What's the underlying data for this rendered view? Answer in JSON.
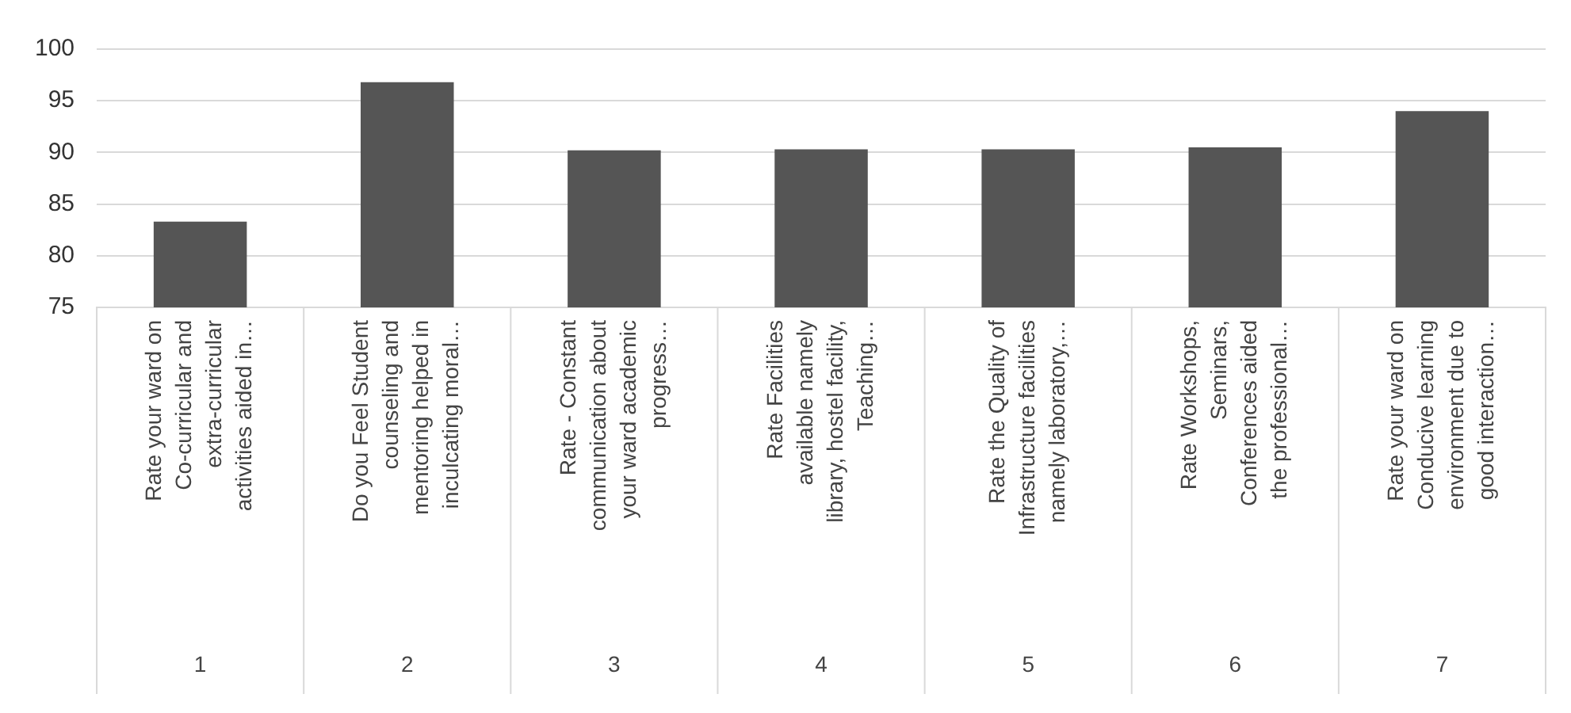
{
  "chart_data": {
    "type": "bar",
    "categories": [
      "Rate your ward on Co-curricular and extra-curricular activities aided in…",
      "Do you Feel Student counseling and mentoring helped in inculcating moral…",
      "Rate - Constant communication about your ward academic progress…",
      "Rate Facilities available namely library, hostel facility, Teaching…",
      "Rate the Quality of Infrastructure facilities namely laboratory,…",
      "Rate Workshops, Seminars, Conferences aided the professional…",
      "Rate your ward on Conducive learning environment due to good interaction…"
    ],
    "values": [
      83.3,
      96.8,
      90.2,
      90.3,
      90.3,
      90.5,
      94
    ],
    "color": "#555555",
    "ylim": [
      75,
      100
    ],
    "yticks": [
      75,
      80,
      85,
      90,
      95,
      100
    ],
    "grid": "y",
    "legend": false,
    "annotations": [
      "1",
      "2",
      "3",
      "4",
      "5",
      "6",
      "7"
    ]
  }
}
